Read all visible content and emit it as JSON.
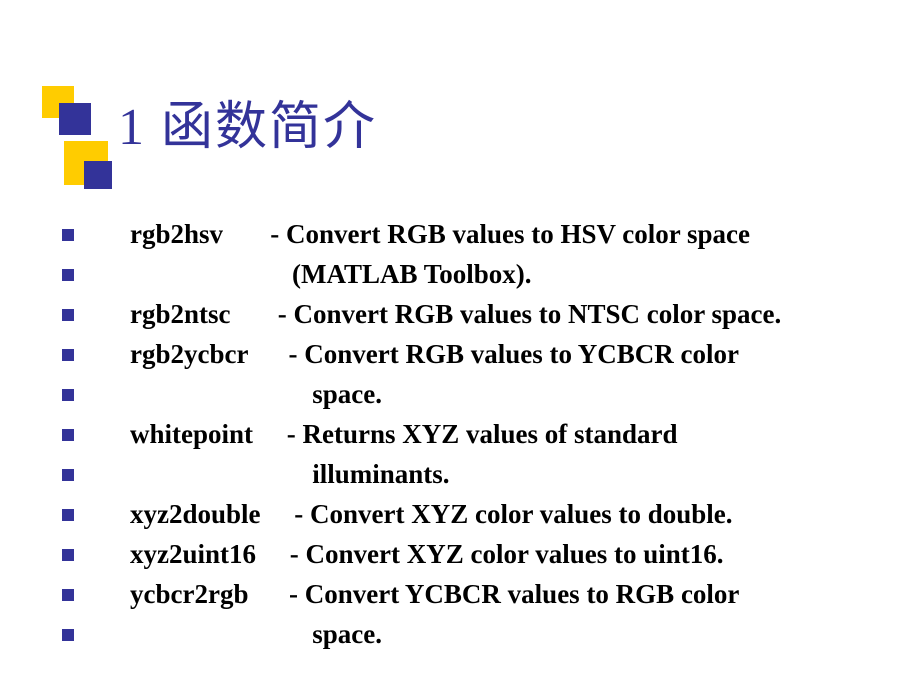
{
  "colors": {
    "title_color": "#333399",
    "bullet_color": "#333399",
    "text_color": "#000000",
    "yellow": "#ffcc00",
    "blue": "#333399",
    "background": "#ffffff"
  },
  "typography": {
    "title_fontsize": 52,
    "body_fontsize": 27,
    "body_weight": "bold",
    "title_family": "Times New Roman, SimSun, serif",
    "body_family": "Times New Roman, serif"
  },
  "title": "1 函数简介",
  "items": [
    "rgb2hsv       - Convert RGB values to HSV color space",
    "                        (MATLAB Toolbox).",
    "rgb2ntsc       - Convert RGB values to NTSC color space.",
    "rgb2ycbcr      - Convert RGB values to YCBCR color",
    "                           space.",
    "whitepoint     - Returns XYZ values of standard",
    "                           illuminants.",
    "xyz2double     - Convert XYZ color values to double.",
    "xyz2uint16     - Convert XYZ color values to uint16.",
    "ycbcr2rgb      - Convert YCBCR values to RGB color",
    "                           space."
  ]
}
